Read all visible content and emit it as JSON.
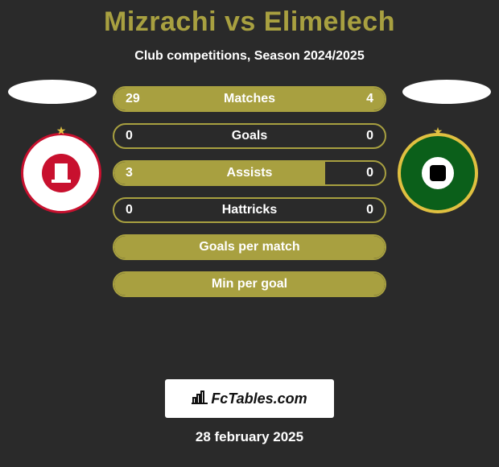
{
  "title": "Mizrachi vs Elimelech",
  "subtitle": "Club competitions, Season 2024/2025",
  "stats": [
    {
      "label": "Matches",
      "left_val": "29",
      "right_val": "4",
      "left_pct": 78,
      "right_pct": 22,
      "show_vals": true,
      "full": false
    },
    {
      "label": "Goals",
      "left_val": "0",
      "right_val": "0",
      "left_pct": 0,
      "right_pct": 0,
      "show_vals": true,
      "full": false
    },
    {
      "label": "Assists",
      "left_val": "3",
      "right_val": "0",
      "left_pct": 78,
      "right_pct": 0,
      "show_vals": true,
      "full": false
    },
    {
      "label": "Hattricks",
      "left_val": "0",
      "right_val": "0",
      "left_pct": 0,
      "right_pct": 0,
      "show_vals": true,
      "full": false
    },
    {
      "label": "Goals per match",
      "left_val": "",
      "right_val": "",
      "left_pct": 0,
      "right_pct": 0,
      "show_vals": false,
      "full": true
    },
    {
      "label": "Min per goal",
      "left_val": "",
      "right_val": "",
      "left_pct": 0,
      "right_pct": 0,
      "show_vals": false,
      "full": true
    }
  ],
  "attribution": "FcTables.com",
  "date": "28 february 2025",
  "colors": {
    "accent": "#a8a040",
    "background": "#2a2a2a",
    "text": "#ffffff",
    "team1_primary": "#c8102e",
    "team2_primary": "#0b5f1a",
    "gold": "#e0c040"
  }
}
